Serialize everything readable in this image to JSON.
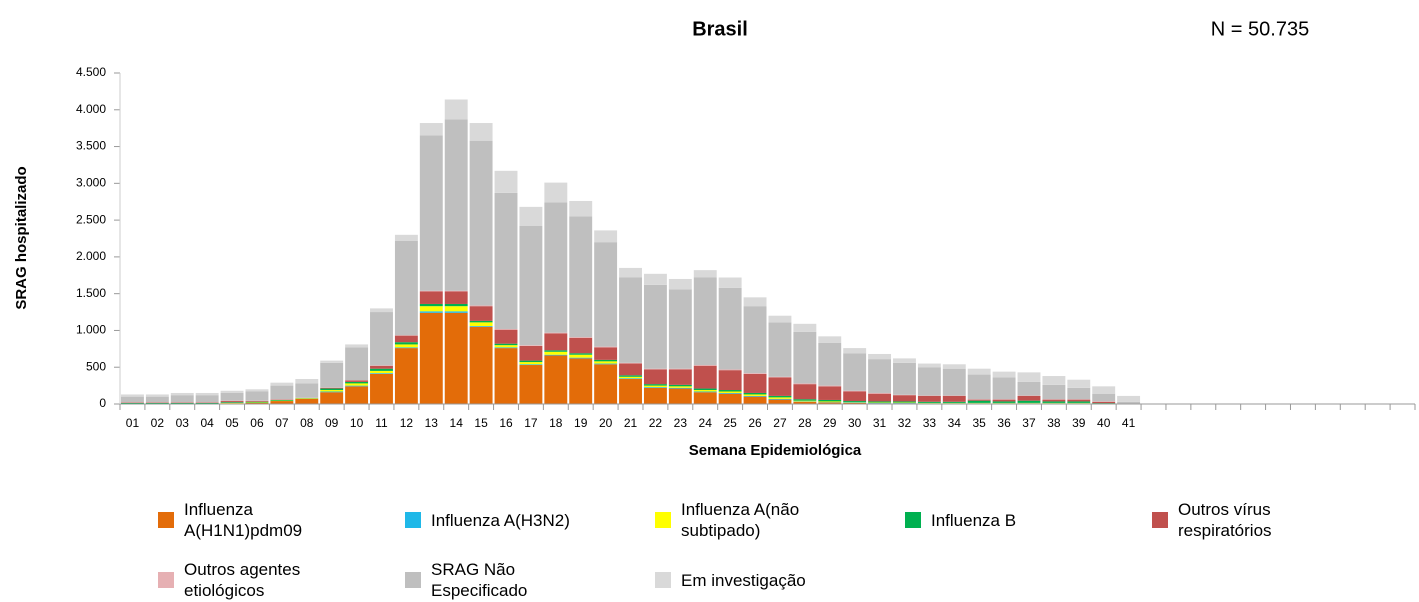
{
  "chart_data": {
    "type": "stacked_bar",
    "title": "Brasil",
    "annotation": "N =  50.735",
    "x_label": "Semana Epidemiológica",
    "y_label": "SRAG hospitalizado",
    "categories": [
      "01",
      "02",
      "03",
      "04",
      "05",
      "06",
      "07",
      "08",
      "09",
      "10",
      "11",
      "12",
      "13",
      "14",
      "15",
      "16",
      "17",
      "18",
      "19",
      "20",
      "21",
      "22",
      "23",
      "24",
      "25",
      "26",
      "27",
      "28",
      "29",
      "30",
      "31",
      "32",
      "33",
      "34",
      "35",
      "36",
      "37",
      "38",
      "39",
      "40",
      "41",
      null,
      null,
      null,
      null,
      null,
      null,
      null,
      null,
      null,
      null,
      null
    ],
    "ylim": [
      0,
      4500
    ],
    "yticks": [
      0,
      500,
      {
        "value": 1000,
        "label": "1.000"
      },
      {
        "value": 1500,
        "label": "1.500"
      },
      {
        "value": 2000,
        "label": "2.000"
      },
      {
        "value": 2500,
        "label": "2.500"
      },
      {
        "value": 3000,
        "label": "3.000"
      },
      {
        "value": 3500,
        "label": "3.500"
      },
      {
        "value": 4000,
        "label": "4.000"
      },
      {
        "value": 4500,
        "label": "4.500"
      }
    ],
    "grid": false,
    "series": [
      {
        "name": "Influenza A(H1N1)pdm09",
        "color": "#e36c09",
        "values": [
          5,
          5,
          5,
          5,
          10,
          15,
          40,
          70,
          160,
          240,
          410,
          760,
          1240,
          1240,
          1050,
          760,
          530,
          660,
          620,
          540,
          340,
          220,
          210,
          160,
          140,
          100,
          60,
          30,
          20,
          15,
          10,
          10,
          5,
          5,
          5,
          5,
          5,
          5,
          5,
          2,
          0,
          null,
          null,
          null,
          null,
          null,
          null,
          null,
          null,
          null,
          null,
          null
        ]
      },
      {
        "name": "Influenza A(H3N2)",
        "color": "#1fb8e8",
        "values": [
          0,
          0,
          0,
          0,
          0,
          0,
          0,
          0,
          10,
          10,
          10,
          10,
          20,
          20,
          10,
          10,
          10,
          10,
          10,
          10,
          10,
          10,
          10,
          10,
          10,
          10,
          10,
          5,
          5,
          5,
          5,
          5,
          5,
          5,
          5,
          5,
          5,
          5,
          5,
          0,
          0,
          null,
          null,
          null,
          null,
          null,
          null,
          null,
          null,
          null,
          null,
          null
        ]
      },
      {
        "name": "Influenza A(não subtipado)",
        "color": "#ffff00",
        "values": [
          0,
          0,
          0,
          0,
          5,
          5,
          5,
          5,
          20,
          30,
          30,
          40,
          70,
          70,
          50,
          30,
          30,
          40,
          40,
          30,
          20,
          20,
          20,
          20,
          20,
          20,
          20,
          10,
          10,
          5,
          5,
          5,
          5,
          5,
          5,
          5,
          5,
          5,
          5,
          0,
          0,
          null,
          null,
          null,
          null,
          null,
          null,
          null,
          null,
          null,
          null,
          null
        ]
      },
      {
        "name": "Influenza B",
        "color": "#00b050",
        "values": [
          10,
          10,
          10,
          10,
          10,
          10,
          10,
          5,
          20,
          20,
          30,
          30,
          30,
          30,
          20,
          20,
          20,
          20,
          20,
          20,
          20,
          20,
          20,
          20,
          20,
          20,
          20,
          20,
          20,
          15,
          15,
          15,
          15,
          15,
          30,
          20,
          30,
          20,
          20,
          10,
          0,
          null,
          null,
          null,
          null,
          null,
          null,
          null,
          null,
          null,
          null,
          null
        ]
      },
      {
        "name": "Outros vírus respiratórios",
        "color": "#c0504d",
        "values": [
          5,
          5,
          5,
          5,
          15,
          10,
          5,
          0,
          10,
          20,
          40,
          90,
          170,
          170,
          200,
          190,
          200,
          230,
          210,
          170,
          160,
          200,
          210,
          310,
          270,
          260,
          250,
          205,
          185,
          130,
          105,
          85,
          80,
          80,
          15,
          25,
          65,
          25,
          25,
          18,
          0,
          null,
          null,
          null,
          null,
          null,
          null,
          null,
          null,
          null,
          null,
          null
        ]
      },
      {
        "name": "Outros agentes etiológicos",
        "color": "#e6b0b3",
        "values": [
          5,
          5,
          5,
          5,
          5,
          5,
          5,
          5,
          5,
          5,
          5,
          5,
          10,
          10,
          10,
          10,
          10,
          10,
          10,
          10,
          10,
          10,
          10,
          10,
          10,
          10,
          10,
          10,
          10,
          10,
          10,
          5,
          5,
          5,
          5,
          5,
          5,
          5,
          5,
          5,
          0,
          null,
          null,
          null,
          null,
          null,
          null,
          null,
          null,
          null,
          null,
          null
        ]
      },
      {
        "name": "SRAG Não Especificado",
        "color": "#bfbfbf",
        "values": [
          75,
          75,
          95,
          95,
          105,
          125,
          185,
          195,
          335,
          445,
          725,
          1285,
          2110,
          2330,
          2240,
          1850,
          1620,
          1770,
          1640,
          1420,
          1160,
          1140,
          1080,
          1190,
          1110,
          910,
          740,
          700,
          580,
          510,
          460,
          435,
          385,
          365,
          335,
          295,
          185,
          195,
          155,
          105,
          30,
          null,
          null,
          null,
          null,
          null,
          null,
          null,
          null,
          null,
          null,
          null
        ]
      },
      {
        "name": "Em investigação",
        "color": "#d9d9d9",
        "values": [
          30,
          30,
          30,
          30,
          30,
          30,
          40,
          60,
          30,
          40,
          50,
          80,
          170,
          270,
          240,
          300,
          260,
          270,
          210,
          160,
          130,
          150,
          140,
          100,
          140,
          120,
          90,
          110,
          90,
          70,
          70,
          60,
          50,
          60,
          80,
          80,
          130,
          120,
          110,
          100,
          80,
          null,
          null,
          null,
          null,
          null,
          null,
          null,
          null,
          null,
          null,
          null
        ]
      }
    ]
  }
}
